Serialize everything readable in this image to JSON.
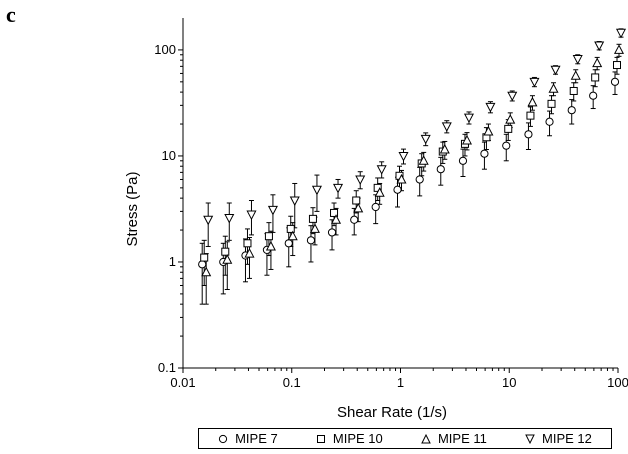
{
  "panel_label": "c",
  "chart_data": {
    "type": "scatter",
    "xlabel": "Shear Rate (1/s)",
    "ylabel": "Stress (Pa)",
    "x_scale": "log",
    "y_scale": "log",
    "xlim": [
      0.01,
      100
    ],
    "ylim": [
      0.1,
      200
    ],
    "x_ticks": [
      "0.01",
      "0.1",
      "1",
      "10",
      "100"
    ],
    "y_ticks": [
      "0.1",
      "1",
      "10",
      "100"
    ],
    "grid": false,
    "legend_position": "bottom",
    "x": [
      0.016,
      0.025,
      0.04,
      0.063,
      0.1,
      0.16,
      0.25,
      0.4,
      0.63,
      1.0,
      1.6,
      2.5,
      4.0,
      6.3,
      10,
      16,
      25,
      40,
      63,
      100
    ],
    "series": [
      {
        "name": "MIPE 7",
        "marker": "circle",
        "values": [
          0.95,
          1.0,
          1.15,
          1.3,
          1.5,
          1.6,
          1.9,
          2.5,
          3.3,
          4.8,
          6.0,
          7.5,
          9.0,
          10.5,
          12.5,
          16.0,
          21.0,
          27.0,
          37.0,
          50.0
        ],
        "error": [
          0.55,
          0.5,
          0.5,
          0.55,
          0.6,
          0.6,
          0.6,
          0.7,
          1.0,
          1.5,
          1.8,
          2.2,
          2.6,
          3.0,
          3.5,
          4.5,
          5.5,
          7.0,
          9.0,
          12.0
        ]
      },
      {
        "name": "MIPE 10",
        "marker": "square",
        "values": [
          1.1,
          1.25,
          1.5,
          1.75,
          2.05,
          2.55,
          2.9,
          3.8,
          5.0,
          6.5,
          8.5,
          11.0,
          13.0,
          15.0,
          18.0,
          24.0,
          31.0,
          41.0,
          55.0,
          72.0
        ],
        "error": [
          0.5,
          0.5,
          0.55,
          0.6,
          0.65,
          0.7,
          0.7,
          0.9,
          1.2,
          1.5,
          2.0,
          2.5,
          3.0,
          3.5,
          4.0,
          5.0,
          6.0,
          8.0,
          10.0,
          13.0
        ]
      },
      {
        "name": "MIPE 11",
        "marker": "triangle-up",
        "values": [
          0.8,
          1.05,
          1.2,
          1.4,
          1.75,
          2.05,
          2.5,
          3.2,
          4.5,
          6.0,
          9.0,
          11.5,
          14.0,
          17.0,
          22.0,
          32.0,
          43.0,
          57.0,
          75.0,
          100.0
        ],
        "error": [
          0.4,
          0.5,
          0.5,
          0.55,
          0.6,
          0.6,
          0.7,
          0.8,
          1.0,
          1.3,
          1.8,
          2.2,
          2.6,
          3.0,
          3.5,
          5.0,
          6.0,
          8.0,
          10.0,
          13.0
        ]
      },
      {
        "name": "MIPE 12",
        "marker": "triangle-down",
        "values": [
          2.5,
          2.6,
          2.8,
          3.1,
          3.8,
          4.8,
          5.0,
          6.0,
          7.5,
          10.0,
          14.5,
          19.0,
          23.0,
          29.0,
          37.0,
          50.0,
          65.0,
          82.0,
          110.0,
          145.0
        ],
        "error": [
          1.1,
          1.0,
          1.0,
          1.2,
          1.7,
          1.8,
          1.0,
          1.1,
          1.3,
          1.6,
          2.0,
          2.5,
          3.0,
          3.5,
          4.0,
          5.0,
          6.0,
          8.0,
          10.0,
          13.0
        ]
      }
    ]
  }
}
